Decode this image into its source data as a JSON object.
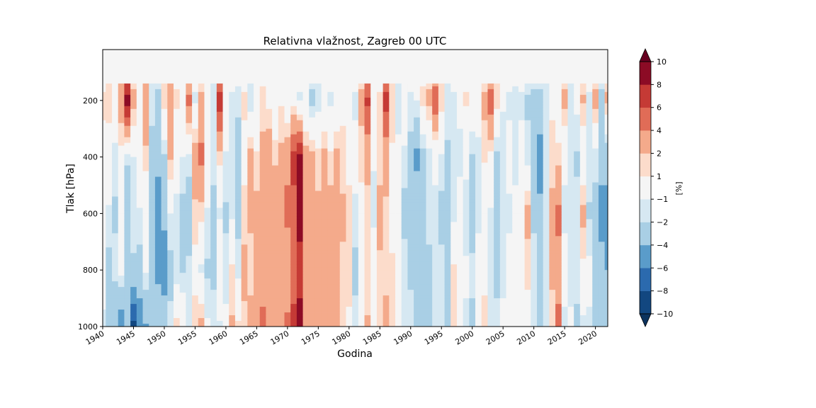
{
  "chart_data": {
    "type": "heatmap",
    "title": "Relativna vlažnost, Zagreb 00 UTC",
    "xlabel": "Godina",
    "ylabel": "Tlak [hPa]",
    "xlim": [
      1940,
      2022
    ],
    "ylim": [
      1000,
      20
    ],
    "y_inverted": true,
    "x_ticks": [
      1940,
      1945,
      1950,
      1955,
      1960,
      1965,
      1970,
      1975,
      1980,
      1985,
      1990,
      1995,
      2000,
      2005,
      2010,
      2015,
      2020
    ],
    "y_ticks": [
      200,
      400,
      600,
      800,
      1000
    ],
    "colorbar": {
      "label": "[%]",
      "levels": [
        -10,
        -8,
        -6,
        -4,
        -2,
        -1,
        1,
        2,
        4,
        6,
        8,
        10
      ],
      "colors": [
        "#124780",
        "#2b6aae",
        "#5a9cca",
        "#a9cfe5",
        "#d6e8f2",
        "#f5f5f5",
        "#fcdccb",
        "#f4aa8b",
        "#e06c57",
        "#c53a35",
        "#8c0b25"
      ],
      "extend": "both",
      "under_color": "#0c335e",
      "over_color": "#670020"
    },
    "missing_data_above_hPa": 140,
    "columns": [
      {
        "year": 1940,
        "v": [
          0,
          1.2,
          0.6,
          -0.4,
          0.5,
          -1.6
        ]
      },
      {
        "year": 1941,
        "v": [
          0,
          1.5,
          0.3,
          -1.2,
          -2.5,
          -3.2
        ]
      },
      {
        "year": 1942,
        "v": [
          0,
          0.5,
          -1.5,
          -2.2,
          -1.6,
          -3.5
        ]
      },
      {
        "year": 1943,
        "v": [
          0,
          3.0,
          0.5,
          -0.8,
          -0.5,
          -5.5
        ]
      },
      {
        "year": 1944,
        "v": [
          0,
          9.0,
          -1.8,
          -3.2,
          -2.6,
          -4.0
        ]
      },
      {
        "year": 1945,
        "v": [
          0,
          2.5,
          -1.0,
          -1.5,
          -2.2,
          -8.5
        ]
      },
      {
        "year": 1946,
        "v": [
          0,
          0.6,
          0.4,
          -1.2,
          -2.6,
          -5.5
        ]
      },
      {
        "year": 1947,
        "v": [
          0,
          3.5,
          1.6,
          -0.8,
          -0.8,
          -4.2
        ]
      },
      {
        "year": 1948,
        "v": [
          0,
          -1.6,
          -2.5,
          -2.8,
          -3.2,
          -2.8
        ]
      },
      {
        "year": 1949,
        "v": [
          0,
          -2.5,
          -3.5,
          -5.0,
          -4.5,
          -2.6
        ]
      },
      {
        "year": 1950,
        "v": [
          0,
          1.5,
          -2.2,
          -3.5,
          -5.2,
          -2.5
        ]
      },
      {
        "year": 1951,
        "v": [
          0,
          3.5,
          2.2,
          -1.0,
          -2.5,
          -1.6
        ]
      },
      {
        "year": 1952,
        "v": [
          0,
          1.3,
          -0.6,
          -1.2,
          -1.8,
          1.5
        ]
      },
      {
        "year": 1953,
        "v": [
          0,
          -0.6,
          -1.0,
          -2.5,
          -2.2,
          0.8
        ]
      },
      {
        "year": 1954,
        "v": [
          0,
          4.5,
          -1.4,
          -3.2,
          -1.6,
          -1.2
        ]
      },
      {
        "year": 1955,
        "v": [
          0,
          -1.2,
          3.2,
          1.6,
          0.5,
          1.6
        ]
      },
      {
        "year": 1956,
        "v": [
          0,
          2.4,
          4.5,
          1.4,
          -1.2,
          2.6
        ]
      },
      {
        "year": 1957,
        "v": [
          0,
          -0.6,
          0.5,
          -1.2,
          -2.2,
          -0.8
        ]
      },
      {
        "year": 1958,
        "v": [
          0,
          -1.5,
          -1.6,
          -2.4,
          -2.2,
          -1.6
        ]
      },
      {
        "year": 1959,
        "v": [
          0,
          7.0,
          1.4,
          -1.2,
          0.5,
          -1.2
        ]
      },
      {
        "year": 1960,
        "v": [
          0,
          0.6,
          -1.2,
          -2.2,
          -1.6,
          -0.6
        ]
      },
      {
        "year": 1961,
        "v": [
          0,
          -1.2,
          -1.6,
          -1.2,
          1.2,
          2.2
        ]
      },
      {
        "year": 1962,
        "v": [
          0,
          -1.4,
          -3.5,
          -2.5,
          -1.4,
          1.2
        ]
      },
      {
        "year": 1963,
        "v": [
          0,
          1.2,
          0.6,
          1.4,
          2.5,
          1.6
        ]
      },
      {
        "year": 1964,
        "v": [
          0,
          -1.8,
          2.6,
          2.2,
          1.6,
          2.5
        ]
      },
      {
        "year": 1965,
        "v": [
          0,
          -0.6,
          1.2,
          2.5,
          2.6,
          3.5
        ]
      },
      {
        "year": 1966,
        "v": [
          0,
          1.4,
          2.5,
          2.6,
          3.0,
          4.5
        ]
      },
      {
        "year": 1967,
        "v": [
          0,
          0.6,
          3.5,
          2.4,
          2.6,
          3.5
        ]
      },
      {
        "year": 1968,
        "v": [
          0,
          -0.8,
          1.8,
          3.2,
          2.5,
          2.5
        ]
      },
      {
        "year": 1969,
        "v": [
          0,
          0.8,
          2.4,
          3.0,
          2.0,
          2.5
        ]
      },
      {
        "year": 1970,
        "v": [
          0,
          -0.6,
          3.5,
          4.5,
          2.6,
          4.5
        ]
      },
      {
        "year": 1971,
        "v": [
          0,
          0.5,
          6.5,
          5.5,
          5.2,
          6.5
        ]
      },
      {
        "year": 1972,
        "v": [
          0,
          -1.2,
          8.5,
          8.5,
          7.5,
          8.5
        ]
      },
      {
        "year": 1973,
        "v": [
          0,
          -0.8,
          2.6,
          3.2,
          3.5,
          3.5
        ]
      },
      {
        "year": 1974,
        "v": [
          0,
          -2.5,
          2.4,
          3.5,
          2.6,
          2.5
        ]
      },
      {
        "year": 1975,
        "v": [
          0,
          -1.6,
          1.4,
          2.4,
          2.2,
          2.6
        ]
      },
      {
        "year": 1976,
        "v": [
          0,
          -1.0,
          2.5,
          3.2,
          2.4,
          2.8
        ]
      },
      {
        "year": 1977,
        "v": [
          0,
          -1.2,
          1.2,
          2.8,
          3.5,
          2.5
        ]
      },
      {
        "year": 1978,
        "v": [
          0,
          -1.0,
          2.5,
          2.5,
          2.4,
          2.0
        ]
      },
      {
        "year": 1979,
        "v": [
          0,
          0.5,
          1.6,
          2.2,
          1.8,
          1.6
        ]
      },
      {
        "year": 1980,
        "v": [
          0,
          -0.6,
          0.8,
          1.2,
          1.4,
          0.8
        ]
      },
      {
        "year": 1981,
        "v": [
          0,
          -1.2,
          -0.6,
          -1.2,
          -2.5,
          -1.4
        ]
      },
      {
        "year": 1982,
        "v": [
          0,
          2.5,
          1.4,
          0.5,
          -0.8,
          0.6
        ]
      },
      {
        "year": 1983,
        "v": [
          0,
          6.5,
          2.4,
          1.6,
          1.2,
          2.2
        ]
      },
      {
        "year": 1984,
        "v": [
          0,
          0.6,
          -0.8,
          -1.6,
          0.8,
          0.6
        ]
      },
      {
        "year": 1985,
        "v": [
          0,
          1.2,
          1.6,
          2.4,
          1.8,
          1.4
        ]
      },
      {
        "year": 1986,
        "v": [
          0,
          7.0,
          2.5,
          1.8,
          1.6,
          2.5
        ]
      },
      {
        "year": 1987,
        "v": [
          0,
          1.6,
          0.8,
          0.5,
          1.2,
          1.6
        ]
      },
      {
        "year": 1988,
        "v": [
          0,
          -1.6,
          -0.6,
          -0.8,
          0.5,
          0.8
        ]
      },
      {
        "year": 1989,
        "v": [
          0,
          0.4,
          -1.4,
          -2.5,
          -1.4,
          -1.2
        ]
      },
      {
        "year": 1990,
        "v": [
          0,
          -1.2,
          -2.6,
          -2.5,
          -2.2,
          -1.6
        ]
      },
      {
        "year": 1991,
        "v": [
          0,
          -1.0,
          -4.5,
          -2.6,
          -2.4,
          -2.0
        ]
      },
      {
        "year": 1992,
        "v": [
          0,
          1.4,
          -2.5,
          -2.2,
          -2.6,
          -3.5
        ]
      },
      {
        "year": 1993,
        "v": [
          0,
          2.5,
          -1.6,
          -1.4,
          -2.5,
          -2.6
        ]
      },
      {
        "year": 1994,
        "v": [
          0,
          5.5,
          -0.8,
          -1.2,
          -1.6,
          -1.2
        ]
      },
      {
        "year": 1995,
        "v": [
          0,
          1.6,
          -1.2,
          -2.5,
          -1.6,
          -1.4
        ]
      },
      {
        "year": 1996,
        "v": [
          0,
          -1.5,
          -2.2,
          -2.5,
          -2.2,
          -2.6
        ]
      },
      {
        "year": 1997,
        "v": [
          0,
          -1.2,
          -1.6,
          -1.4,
          1.2,
          1.4
        ]
      },
      {
        "year": 1998,
        "v": [
          0,
          -0.8,
          -1.2,
          -0.6,
          -0.8,
          -0.6
        ]
      },
      {
        "year": 1999,
        "v": [
          0,
          1.2,
          -0.6,
          -1.6,
          -0.8,
          -1.2
        ]
      },
      {
        "year": 2000,
        "v": [
          0,
          0.6,
          -2.2,
          -2.5,
          -1.8,
          -2.2
        ]
      },
      {
        "year": 2001,
        "v": [
          0,
          -0.6,
          -1.2,
          -1.2,
          -0.6,
          0.8
        ]
      },
      {
        "year": 2002,
        "v": [
          0,
          2.4,
          1.2,
          -0.6,
          0.5,
          1.6
        ]
      },
      {
        "year": 2003,
        "v": [
          0,
          5.2,
          0.6,
          -1.2,
          -1.6,
          -1.4
        ]
      },
      {
        "year": 2004,
        "v": [
          0,
          1.6,
          -2.5,
          -2.2,
          -2.4,
          -1.6
        ]
      },
      {
        "year": 2005,
        "v": [
          0,
          -0.8,
          -1.8,
          -1.6,
          -1.2,
          -0.8
        ]
      },
      {
        "year": 2006,
        "v": [
          0,
          -1.2,
          -0.6,
          -1.2,
          -0.6,
          -0.6
        ]
      },
      {
        "year": 2007,
        "v": [
          0,
          -1.4,
          -1.2,
          -0.8,
          -0.6,
          -0.6
        ]
      },
      {
        "year": 2008,
        "v": [
          0,
          -1.2,
          -0.6,
          -0.8,
          -0.8,
          0.6
        ]
      },
      {
        "year": 2009,
        "v": [
          0,
          -2.2,
          -1.6,
          2.6,
          1.2,
          0.6
        ]
      },
      {
        "year": 2010,
        "v": [
          0,
          -2.5,
          -3.5,
          -2.2,
          -1.6,
          -1.2
        ]
      },
      {
        "year": 2011,
        "v": [
          0,
          -2.6,
          -5.0,
          -3.5,
          -3.2,
          -2.5
        ]
      },
      {
        "year": 2012,
        "v": [
          0,
          -1.6,
          -1.2,
          -1.6,
          -1.4,
          -1.2
        ]
      },
      {
        "year": 2013,
        "v": [
          0,
          0.8,
          1.4,
          2.5,
          2.2,
          1.6
        ]
      },
      {
        "year": 2014,
        "v": [
          0,
          -0.6,
          1.6,
          4.5,
          3.2,
          4.5
        ]
      },
      {
        "year": 2015,
        "v": [
          0,
          2.5,
          -0.8,
          -1.2,
          -0.6,
          -1.2
        ]
      },
      {
        "year": 2016,
        "v": [
          0,
          -1.6,
          -1.4,
          -1.2,
          -1.4,
          -0.8
        ]
      },
      {
        "year": 2017,
        "v": [
          0,
          -0.6,
          -2.2,
          -1.6,
          -1.2,
          -2.5
        ]
      },
      {
        "year": 2018,
        "v": [
          0,
          2.2,
          -0.6,
          2.5,
          0.6,
          -1.4
        ]
      },
      {
        "year": 2019,
        "v": [
          0,
          -1.2,
          -1.2,
          -2.2,
          -0.6,
          -1.2
        ]
      },
      {
        "year": 2020,
        "v": [
          0,
          2.6,
          -1.6,
          -2.5,
          -2.2,
          -2.6
        ]
      },
      {
        "year": 2021,
        "v": [
          0,
          -2.5,
          -3.5,
          -4.5,
          -3.5,
          -3.2
        ]
      },
      {
        "year": 2022,
        "v": [
          0,
          2.4,
          -3.5,
          -4.5,
          -4.0,
          -3.5
        ]
      }
    ],
    "column_levels_hPa": [
      20,
      200,
      400,
      600,
      800,
      1000
    ]
  }
}
